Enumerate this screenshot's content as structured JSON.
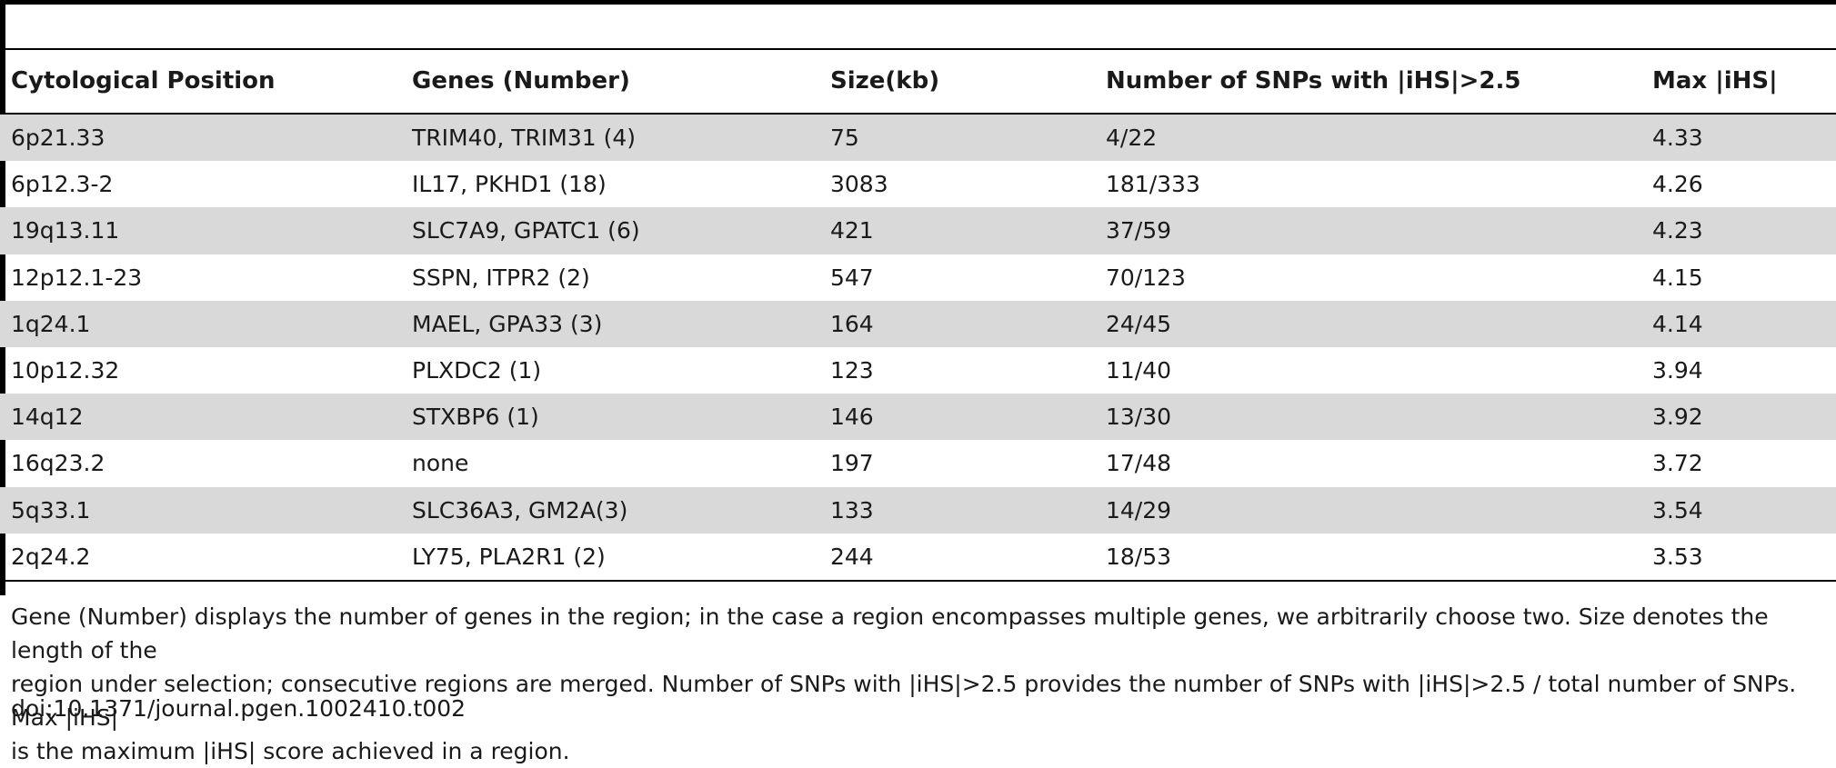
{
  "table": {
    "headers": [
      "Cytological Position",
      "Genes (Number)",
      "Size(kb)",
      "Number of SNPs with |iHS|>2.5",
      "Max |iHS|"
    ],
    "row_shading_color": "#d9d9d9",
    "rows": [
      [
        "6p21.33",
        "TRIM40, TRIM31 (4)",
        "75",
        "4/22",
        "4.33"
      ],
      [
        "6p12.3-2",
        "IL17, PKHD1 (18)",
        "3083",
        "181/333",
        "4.26"
      ],
      [
        "19q13.11",
        "SLC7A9, GPATC1 (6)",
        "421",
        "37/59",
        "4.23"
      ],
      [
        "12p12.1-23",
        "SSPN, ITPR2 (2)",
        "547",
        "70/123",
        "4.15"
      ],
      [
        "1q24.1",
        "MAEL, GPA33 (3)",
        "164",
        "24/45",
        "4.14"
      ],
      [
        "10p12.32",
        "PLXDC2 (1)",
        "123",
        "11/40",
        "3.94"
      ],
      [
        "14q12",
        "STXBP6 (1)",
        "146",
        "13/30",
        "3.92"
      ],
      [
        "16q23.2",
        "none",
        "197",
        "17/48",
        "3.72"
      ],
      [
        "5q33.1",
        "SLC36A3, GM2A(3)",
        "133",
        "14/29",
        "3.54"
      ],
      [
        "2q24.2",
        "LY75, PLA2R1 (2)",
        "244",
        "18/53",
        "3.53"
      ]
    ]
  },
  "footnote": {
    "lines": [
      "Gene (Number) displays the number of genes in the region; in the case a region encompasses multiple genes, we arbitrarily choose two. Size denotes the length of the",
      "region under selection; consecutive regions are merged. Number of SNPs with |iHS|>2.5 provides the number of SNPs with |iHS|>2.5 / total number of SNPs. Max |iHS|",
      "is the maximum |iHS| score achieved in a region."
    ],
    "doi": "doi:10.1371/journal.pgen.1002410.t002"
  }
}
